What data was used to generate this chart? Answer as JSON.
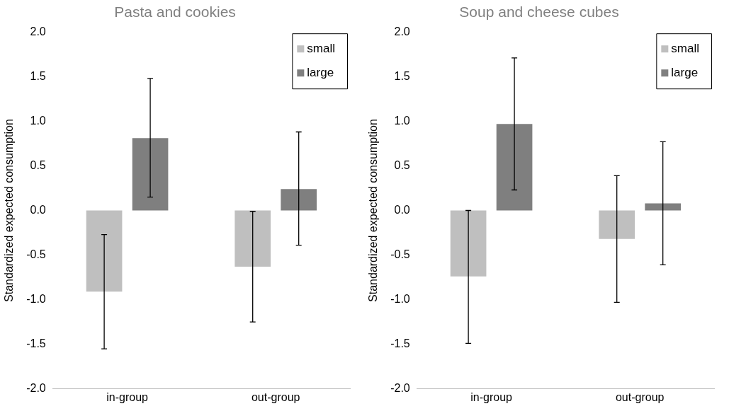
{
  "chart_data": [
    {
      "type": "bar",
      "title": "Pasta and cookies",
      "ylabel": "Standardized expected consumption",
      "categories": [
        "in-group",
        "out-group"
      ],
      "series": [
        {
          "name": "small",
          "color": "#bfbfbf",
          "values": [
            -0.91,
            -0.63
          ],
          "errors": [
            [
              -1.55,
              -0.27
            ],
            [
              -1.25,
              -0.01
            ]
          ]
        },
        {
          "name": "large",
          "color": "#7f7f7f",
          "values": [
            0.81,
            0.24
          ],
          "errors": [
            [
              0.15,
              1.48
            ],
            [
              -0.39,
              0.88
            ]
          ]
        }
      ],
      "ylim": [
        -2,
        2
      ],
      "yticks": [
        {
          "value": -2,
          "label": "-2.0"
        },
        {
          "value": -1.5,
          "label": "-1.5"
        },
        {
          "value": -1,
          "label": "-1.0"
        },
        {
          "value": -0.5,
          "label": "-0.5"
        },
        {
          "value": 0,
          "label": "0.0"
        },
        {
          "value": 0.5,
          "label": "0.5"
        },
        {
          "value": 1,
          "label": "1.0"
        },
        {
          "value": 1.5,
          "label": "1.5"
        },
        {
          "value": 2,
          "label": "2.0"
        }
      ],
      "grid": false,
      "legend": "top right"
    },
    {
      "type": "bar",
      "title": "Soup and cheese cubes",
      "ylabel": "Standardized expected consumption",
      "categories": [
        "in-group",
        "out-group"
      ],
      "series": [
        {
          "name": "small",
          "color": "#bfbfbf",
          "values": [
            -0.74,
            -0.32
          ],
          "errors": [
            [
              -1.49,
              0.0
            ],
            [
              -1.03,
              0.39
            ]
          ]
        },
        {
          "name": "large",
          "color": "#7f7f7f",
          "values": [
            0.97,
            0.08
          ],
          "errors": [
            [
              0.23,
              1.71
            ],
            [
              -0.61,
              0.77
            ]
          ]
        }
      ],
      "ylim": [
        -2,
        2
      ],
      "yticks": [
        {
          "value": -2,
          "label": "-2.0"
        },
        {
          "value": -1.5,
          "label": "-1.5"
        },
        {
          "value": -1,
          "label": "-1.0"
        },
        {
          "value": -0.5,
          "label": "-0.5"
        },
        {
          "value": 0,
          "label": "0.0"
        },
        {
          "value": 0.5,
          "label": "0.5"
        },
        {
          "value": 1,
          "label": "1.0"
        },
        {
          "value": 1.5,
          "label": "1.5"
        },
        {
          "value": 2,
          "label": "2.0"
        }
      ],
      "grid": false,
      "legend": "top right"
    }
  ]
}
